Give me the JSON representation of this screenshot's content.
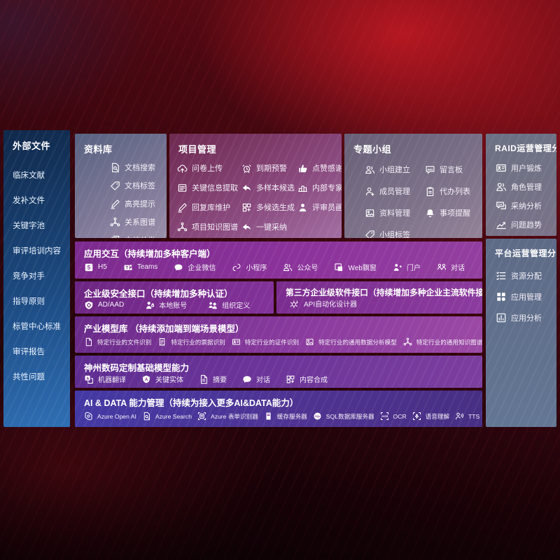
{
  "palette": {
    "background_red": "#4a0811",
    "sidebar_blue": "#2f6fb4",
    "panel_gray": "#6b7183",
    "panel_mauve": "#8a4a7e",
    "row_purple": "#7c2a8f",
    "row_indigo": "#4339a4",
    "text": "#ffffff"
  },
  "sidebar": {
    "title": "外部文件",
    "items": [
      "临床文献",
      "发补文件",
      "关键字池",
      "审评培训内容",
      "竞争对手",
      "指导原则",
      "标管中心标准",
      "审评报告",
      "共性问题"
    ]
  },
  "library": {
    "title": "资料库",
    "items": [
      {
        "label": "文档搜索",
        "icon": "doc-search"
      },
      {
        "label": "文档标签",
        "icon": "tag"
      },
      {
        "label": "高亮提示",
        "icon": "pen"
      },
      {
        "label": "关系图谱",
        "icon": "network"
      },
      {
        "label": "文档分类",
        "icon": "doc-copy"
      }
    ]
  },
  "project": {
    "title": "项目管理",
    "items": [
      {
        "label": "问卷上传",
        "icon": "cloud-upload"
      },
      {
        "label": "到期预警",
        "icon": "alarm"
      },
      {
        "label": "点赞感谢",
        "icon": "thumb"
      },
      {
        "label": "关键信息提取",
        "icon": "extract"
      },
      {
        "label": "多样本候选",
        "icon": "arrow-adopt"
      },
      {
        "label": "内部专家排名",
        "icon": "ranking"
      },
      {
        "label": "回复库维护",
        "icon": "pen"
      },
      {
        "label": "多候选生成",
        "icon": "grid-gen"
      },
      {
        "label": "评审员画像",
        "icon": "person"
      },
      {
        "label": "项目知识图谱",
        "icon": "network"
      },
      {
        "label": "一键采纳",
        "icon": "arrow-adopt"
      }
    ]
  },
  "groups": {
    "title": "专题小组",
    "items": [
      {
        "label": "小组建立",
        "icon": "people"
      },
      {
        "label": "留言板",
        "icon": "bbs"
      },
      {
        "label": "成员管理",
        "icon": "person-add"
      },
      {
        "label": "代办列表",
        "icon": "clipboard"
      },
      {
        "label": "资料管理",
        "icon": "image"
      },
      {
        "label": "事项提醒",
        "icon": "bell"
      },
      {
        "label": "小组标签",
        "icon": "tag"
      }
    ]
  },
  "raid": {
    "title": "RAID运营管理分析",
    "items": [
      {
        "label": "用户锻炼",
        "icon": "id-card"
      },
      {
        "label": "角色管理",
        "icon": "people"
      },
      {
        "label": "采纳分析",
        "icon": "chat-qa"
      },
      {
        "label": "问题趋势",
        "icon": "trend"
      }
    ]
  },
  "platform": {
    "title": "平台运营管理分析",
    "items": [
      {
        "label": "资源分配",
        "icon": "list-alloc"
      },
      {
        "label": "应用管理",
        "icon": "apps"
      },
      {
        "label": "应用分析",
        "icon": "app-chart"
      }
    ]
  },
  "interaction": {
    "title": "应用交互（持续增加多种客户端）",
    "items": [
      {
        "label": "H5",
        "icon": "h5"
      },
      {
        "label": "Teams",
        "icon": "teams"
      },
      {
        "label": "企业微信",
        "icon": "wechat"
      },
      {
        "label": "小程序",
        "icon": "miniprogram"
      },
      {
        "label": "公众号",
        "icon": "official"
      },
      {
        "label": "Web飘窗",
        "icon": "web-window"
      },
      {
        "label": "门户",
        "icon": "portal"
      },
      {
        "label": "对话",
        "icon": "conversation"
      }
    ]
  },
  "security": {
    "title": "企业级安全接口（持续增加多种认证）",
    "items": [
      {
        "label": "AD/AAD",
        "icon": "shield-ad"
      },
      {
        "label": "本地账号",
        "icon": "person-local"
      },
      {
        "label": "组织定义",
        "icon": "org"
      }
    ]
  },
  "thirdparty": {
    "title": "第三方企业级软件接口（持续增加多种企业主流软件接口）",
    "items": [
      {
        "label": "API自动化设计器",
        "icon": "gear-api"
      }
    ]
  },
  "models": {
    "title": "产业模型库 （持续添加端到端场景模型）",
    "items": [
      {
        "label": "特定行业的文件识别",
        "icon": "doc"
      },
      {
        "label": "特定行业的票据识别",
        "icon": "receipt"
      },
      {
        "label": "特定行业的证件识别",
        "icon": "id-card"
      },
      {
        "label": "特定行业的通用数据分析模型",
        "icon": "image"
      },
      {
        "label": "特定行业的通用知识图谱模型",
        "icon": "network"
      }
    ]
  },
  "foundation": {
    "title": "神州数码定制基础模型能力",
    "items": [
      {
        "label": "机器翻译",
        "icon": "translate"
      },
      {
        "label": "关键实体",
        "icon": "shield-a"
      },
      {
        "label": "摘要",
        "icon": "doc-summary"
      },
      {
        "label": "对话",
        "icon": "chat-dots"
      },
      {
        "label": "内容合成",
        "icon": "grid-gen"
      }
    ]
  },
  "aidata": {
    "title": "AI & DATA 能力管理（持续为接入更多AI&DATA能力）",
    "items": [
      {
        "label": "Azure Open AI",
        "icon": "openai"
      },
      {
        "label": "Azure Search",
        "icon": "doc-search"
      },
      {
        "label": "Azure 表单识别器",
        "icon": "form-scan"
      },
      {
        "label": "缓存服务器",
        "icon": "cache-server"
      },
      {
        "label": "SQL数据库服务器",
        "icon": "sql-db"
      },
      {
        "label": "OCR",
        "icon": "ocr-frame"
      },
      {
        "label": "语音理解",
        "icon": "speech"
      },
      {
        "label": "TTS",
        "icon": "tts"
      }
    ]
  }
}
